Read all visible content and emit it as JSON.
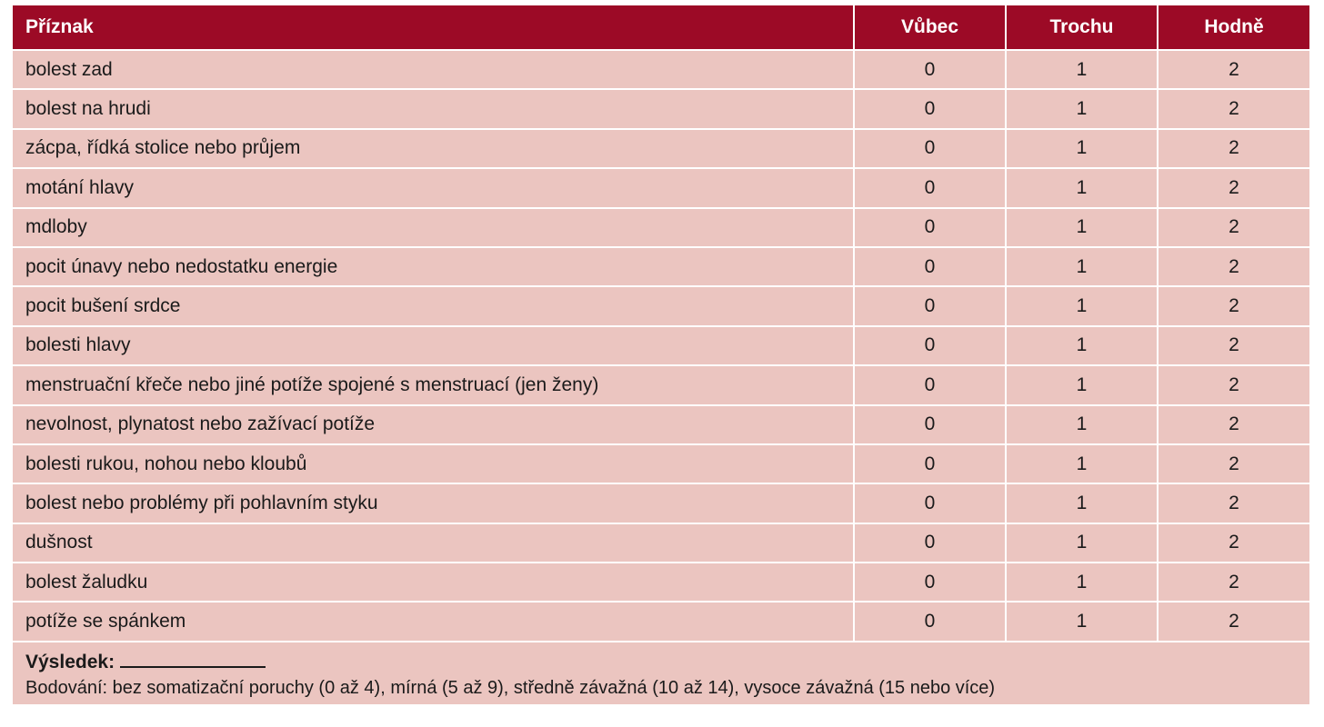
{
  "header": {
    "symptom": "Příznak",
    "col_none": "Vůbec",
    "col_little": "Trochu",
    "col_lot": "Hodně"
  },
  "rows": [
    {
      "symptom": "bolest zad",
      "none": "0",
      "little": "1",
      "lot": "2"
    },
    {
      "symptom": "bolest na hrudi",
      "none": "0",
      "little": "1",
      "lot": "2"
    },
    {
      "symptom": "zácpa, řídká stolice nebo průjem",
      "none": "0",
      "little": "1",
      "lot": "2"
    },
    {
      "symptom": "motání hlavy",
      "none": "0",
      "little": "1",
      "lot": "2"
    },
    {
      "symptom": "mdloby",
      "none": "0",
      "little": "1",
      "lot": "2"
    },
    {
      "symptom": "pocit únavy nebo nedostatku energie",
      "none": "0",
      "little": "1",
      "lot": "2"
    },
    {
      "symptom": "pocit bušení srdce",
      "none": "0",
      "little": "1",
      "lot": "2"
    },
    {
      "symptom": "bolesti hlavy",
      "none": "0",
      "little": "1",
      "lot": "2"
    },
    {
      "symptom": "menstruační křeče nebo jiné potíže spojené s menstruací (jen ženy)",
      "none": "0",
      "little": "1",
      "lot": "2"
    },
    {
      "symptom": "nevolnost, plynatost nebo zažívací potíže",
      "none": "0",
      "little": "1",
      "lot": "2"
    },
    {
      "symptom": "bolesti rukou, nohou nebo kloubů",
      "none": "0",
      "little": "1",
      "lot": "2"
    },
    {
      "symptom": "bolest nebo problémy při pohlavním styku",
      "none": "0",
      "little": "1",
      "lot": "2"
    },
    {
      "symptom": "dušnost",
      "none": "0",
      "little": "1",
      "lot": "2"
    },
    {
      "symptom": "bolest žaludku",
      "none": "0",
      "little": "1",
      "lot": "2"
    },
    {
      "symptom": "potíže se spánkem",
      "none": "0",
      "little": "1",
      "lot": "2"
    }
  ],
  "footer": {
    "result_label": "Výsledek:",
    "scoring": "Bodování: bez somatizační poruchy (0 až 4), mírná (5 až 9), středně závažná (10 až 14), vysoce závažná (15 nebo více)"
  },
  "colors": {
    "header_bg": "#9c0a26",
    "row_bg": "#ebc5c0"
  }
}
